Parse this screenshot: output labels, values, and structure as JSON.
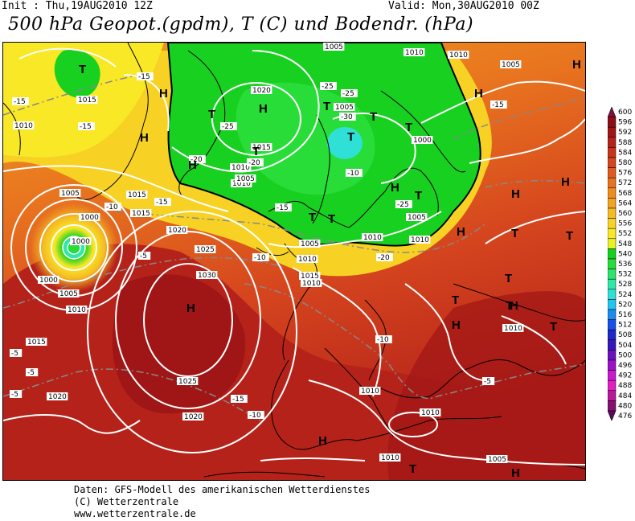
{
  "header": {
    "init": "Init : Thu,19AUG2010 12Z",
    "valid": "Valid: Mon,30AUG2010 00Z",
    "title": "500 hPa Geopot.(gpdm), T (C) und Bodendr. (hPa)"
  },
  "legend": {
    "values": [
      "600",
      "596",
      "592",
      "588",
      "584",
      "580",
      "576",
      "572",
      "568",
      "564",
      "560",
      "556",
      "552",
      "548",
      "540",
      "536",
      "532",
      "528",
      "524",
      "520",
      "516",
      "512",
      "508",
      "504",
      "500",
      "496",
      "492",
      "488",
      "484",
      "480",
      "476"
    ],
    "colors": [
      "#7a1040",
      "#8c0f18",
      "#a01616",
      "#b5221a",
      "#c8331c",
      "#d5451e",
      "#e05a1f",
      "#e8731f",
      "#ef8c20",
      "#f2a322",
      "#f5bb23",
      "#f7d225",
      "#f9e826",
      "#e8f223",
      "#18d020",
      "#28dd38",
      "#2ce46a",
      "#2ee8a8",
      "#2ee0d6",
      "#22c4f0",
      "#1a8cf0",
      "#1650e8",
      "#1c28c8",
      "#3418b8",
      "#6a10c0",
      "#9c10c8",
      "#c818d0",
      "#e020c0",
      "#b81898",
      "#861070",
      "#5a0a5a"
    ]
  },
  "map": {
    "pressure_labels": [
      "1005",
      "1010",
      "1005",
      "1010",
      "1020",
      "1015",
      "1005",
      "1010",
      "1010",
      "1005",
      "1000",
      "1015",
      "1010",
      "1015",
      "1005",
      "1000",
      "1000",
      "1015",
      "1020",
      "1025",
      "1030",
      "1005",
      "1010",
      "1015",
      "1010",
      "1005",
      "1010",
      "1015",
      "1005",
      "1010",
      "1000",
      "1025",
      "1020",
      "1020",
      "1010",
      "1010",
      "1010",
      "1005",
      "1010",
      "1010"
    ],
    "temperature_labels": [
      "-15",
      "-15",
      "-25",
      "-20",
      "-20",
      "-25",
      "-25",
      "-30",
      "-25",
      "-15",
      "-15",
      "-10",
      "-10",
      "-5",
      "-5",
      "-5",
      "-10",
      "-15",
      "-15",
      "-20",
      "-15",
      "-10",
      "-5",
      "-5",
      "-10"
    ],
    "pressure_systems": [
      "T",
      "H",
      "H",
      "T",
      "H",
      "T",
      "H",
      "H",
      "T",
      "T",
      "T",
      "T",
      "H",
      "T",
      "H",
      "H",
      "T",
      "T",
      "H",
      "T",
      "H",
      "T",
      "T",
      "T",
      "H",
      "T",
      "T",
      "H",
      "H",
      "T",
      "H",
      "H"
    ]
  },
  "footer": {
    "line1": "Daten: GFS-Modell des amerikanischen Wetterdienstes",
    "line2": "(C) Wetterzentrale",
    "line3": "www.wetterzentrale.de"
  }
}
